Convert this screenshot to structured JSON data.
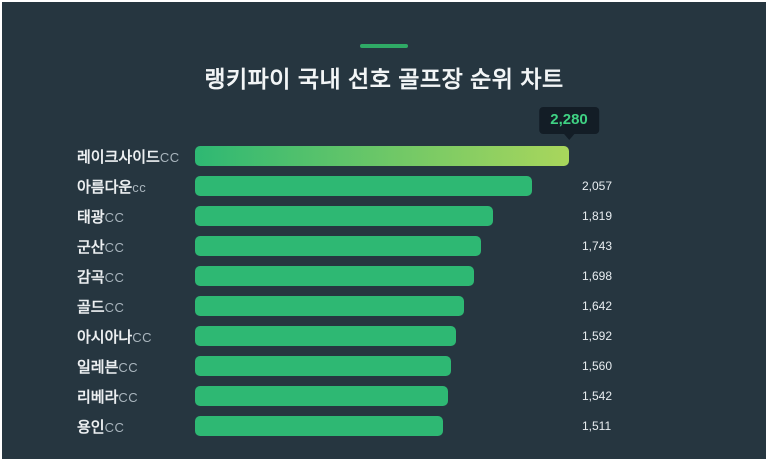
{
  "title": "랭키파이 국내 선호 골프장 순위 차트",
  "tooltip": {
    "value_label": "2,280"
  },
  "colors": {
    "background": "#263640",
    "bar_green": "#2eb873",
    "bar_gradient_start": "#2eb873",
    "bar_gradient_end": "#a9d65c",
    "tooltip_background": "#131d26",
    "tooltip_text": "#3fd183",
    "accent_dash": "#2faa66",
    "title_text": "#f2f5f6",
    "value_text": "#e9eef1"
  },
  "chart_data": {
    "type": "bar",
    "orientation": "horizontal",
    "title": "랭키파이 국내 선호 골프장 순위 차트",
    "xlabel": "",
    "ylabel": "",
    "xlim": [
      0,
      2280
    ],
    "grid": false,
    "legend": false,
    "categories": [
      "레이크사이드CC",
      "아름다운cc",
      "태광CC",
      "군산CC",
      "감곡CC",
      "골드CC",
      "아시아나CC",
      "일레븐CC",
      "리베라CC",
      "용인CC"
    ],
    "values": [
      2280,
      2057,
      1819,
      1743,
      1698,
      1642,
      1592,
      1560,
      1542,
      1511
    ],
    "max_value": 2280,
    "rows": [
      {
        "name": "레이크사이드",
        "suffix": "CC",
        "value": 2280,
        "value_label": "",
        "highlight": true
      },
      {
        "name": "아름다운",
        "suffix": "cc",
        "value": 2057,
        "value_label": "2,057",
        "highlight": false
      },
      {
        "name": "태광",
        "suffix": "CC",
        "value": 1819,
        "value_label": "1,819",
        "highlight": false
      },
      {
        "name": "군산",
        "suffix": "CC",
        "value": 1743,
        "value_label": "1,743",
        "highlight": false
      },
      {
        "name": "감곡",
        "suffix": "CC",
        "value": 1698,
        "value_label": "1,698",
        "highlight": false
      },
      {
        "name": "골드",
        "suffix": "CC",
        "value": 1642,
        "value_label": "1,642",
        "highlight": false
      },
      {
        "name": "아시아나",
        "suffix": "CC",
        "value": 1592,
        "value_label": "1,592",
        "highlight": false
      },
      {
        "name": "일레븐",
        "suffix": "CC",
        "value": 1560,
        "value_label": "1,560",
        "highlight": false
      },
      {
        "name": "리베라",
        "suffix": "CC",
        "value": 1542,
        "value_label": "1,542",
        "highlight": false
      },
      {
        "name": "용인",
        "suffix": "CC",
        "value": 1511,
        "value_label": "1,511",
        "highlight": false
      }
    ]
  }
}
